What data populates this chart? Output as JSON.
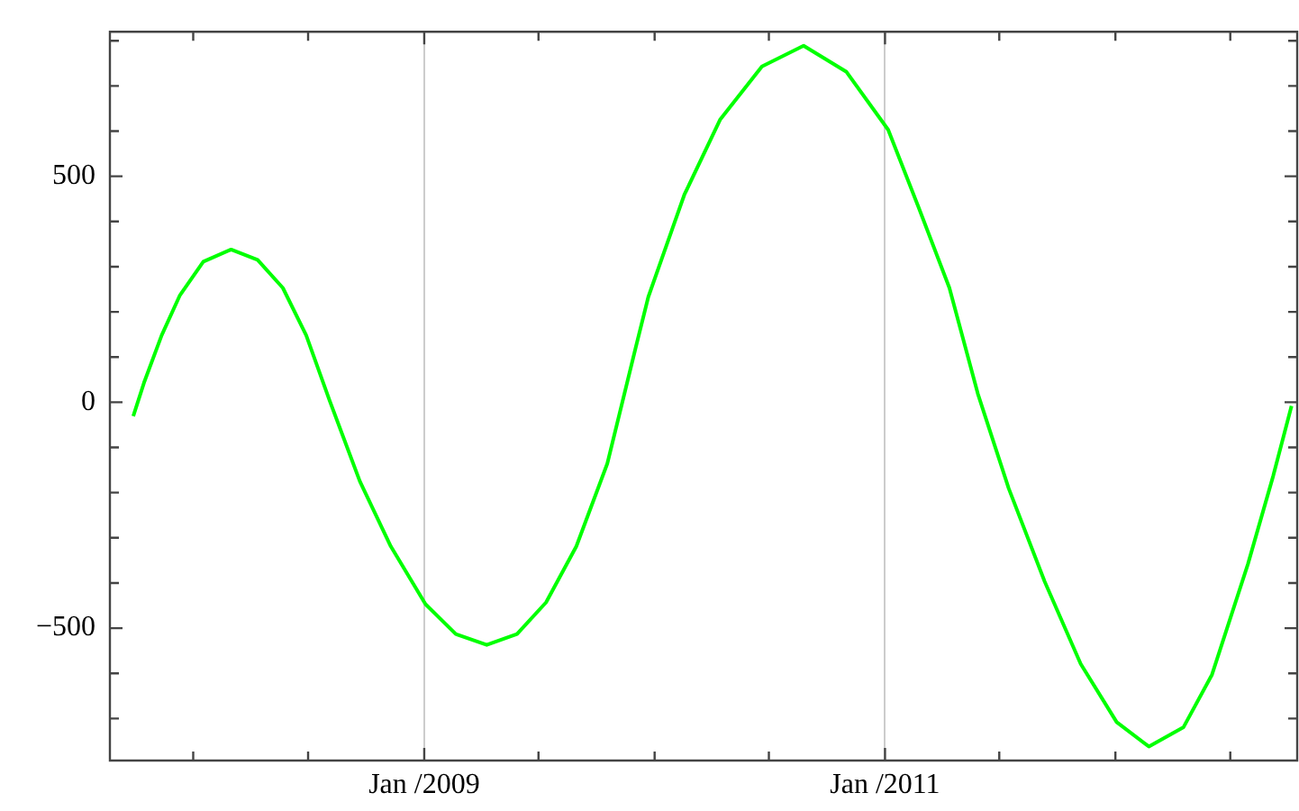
{
  "chart_data": {
    "type": "line",
    "grid": "x",
    "marker": "none",
    "line_style": "solid",
    "xlim": [
      "2007-08-22",
      "2012-10-15"
    ],
    "xticks": [
      {
        "value": "2008-01-01",
        "label": null
      },
      {
        "value": "2008-07-01",
        "label": null
      },
      {
        "value": "2009-01-01",
        "label": "Jan /2009"
      },
      {
        "value": "2009-07-01",
        "label": null
      },
      {
        "value": "2010-01-01",
        "label": null
      },
      {
        "value": "2010-07-01",
        "label": null
      },
      {
        "value": "2011-01-01",
        "label": "Jan /2011"
      },
      {
        "value": "2011-07-01",
        "label": null
      },
      {
        "value": "2012-01-01",
        "label": null
      },
      {
        "value": "2012-07-01",
        "label": null
      }
    ],
    "ylim": [
      -793,
      820
    ],
    "yticks": [
      {
        "value": -700,
        "label": null
      },
      {
        "value": -600,
        "label": null
      },
      {
        "value": -500,
        "label": "−500"
      },
      {
        "value": -400,
        "label": null
      },
      {
        "value": -300,
        "label": null
      },
      {
        "value": -200,
        "label": null
      },
      {
        "value": -100,
        "label": null
      },
      0,
      {
        "value": 100,
        "label": null
      },
      {
        "value": 200,
        "label": null
      },
      {
        "value": 300,
        "label": null
      },
      {
        "value": 400,
        "label": null
      },
      500,
      {
        "value": 600,
        "label": null
      },
      {
        "value": 700,
        "label": null
      },
      {
        "value": 800,
        "label": null
      }
    ],
    "series": [
      {
        "color": "#00ff00",
        "x": [
          "2007-09-28",
          "2007-10-15",
          "2007-11-12",
          "2007-12-11",
          "2008-01-17",
          "2008-03-01",
          "2008-04-12",
          "2008-05-22",
          "2008-06-28",
          "2008-08-04",
          "2008-09-21",
          "2008-11-09",
          "2009-01-03",
          "2009-02-20",
          "2009-04-10",
          "2009-05-28",
          "2009-07-13",
          "2009-08-30",
          "2009-10-18",
          "2009-12-02",
          "2009-12-22",
          "2010-02-17",
          "2010-04-15",
          "2010-06-20",
          "2010-08-25",
          "2010-11-01",
          "2011-01-06",
          "2011-02-23",
          "2011-04-13",
          "2011-05-28",
          "2011-07-16",
          "2011-09-11",
          "2011-11-07",
          "2012-01-03",
          "2012-02-23",
          "2012-04-18",
          "2012-06-02",
          "2012-07-29",
          "2012-09-07",
          "2012-10-06"
        ],
        "values": [
          -31,
          43,
          148,
          237,
          311,
          338,
          315,
          253,
          148,
          4,
          -175,
          -319,
          -447,
          -513,
          -537,
          -513,
          -443,
          -319,
          -136,
          121,
          233,
          459,
          626,
          743,
          789,
          731,
          603,
          432,
          253,
          19,
          -191,
          -397,
          -579,
          -708,
          -762,
          -719,
          -603,
          -358,
          -163,
          -8
        ]
      }
    ]
  }
}
